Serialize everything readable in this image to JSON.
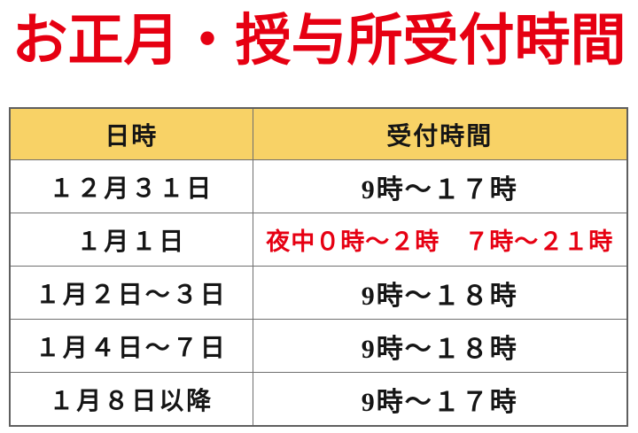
{
  "title": "お正月・授与所受付時間",
  "colors": {
    "title_red": "#e60012",
    "highlight_red": "#e60012",
    "header_yellow": "#f8d266",
    "border_gray": "#6f6f6f",
    "text_black": "#151515"
  },
  "table": {
    "headers": [
      "日時",
      "受付時間"
    ],
    "rows": [
      {
        "date": "１２月３１日",
        "time": "9時～１７時",
        "highlight": false
      },
      {
        "date": "１月１日",
        "time": "夜中０時～２時　７時～２１時",
        "highlight": true
      },
      {
        "date": "１月２日～３日",
        "time": "9時～１８時",
        "highlight": false
      },
      {
        "date": "１月４日～７日",
        "time": "9時～１８時",
        "highlight": false
      },
      {
        "date": "１月８日以降",
        "time": "9時～１７時",
        "highlight": false
      }
    ]
  }
}
